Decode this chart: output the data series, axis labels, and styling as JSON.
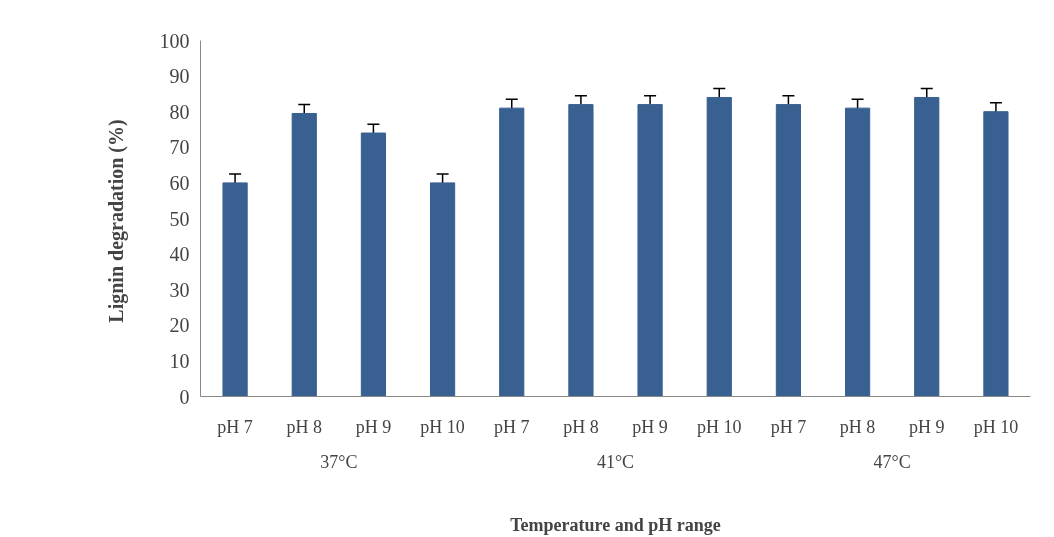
{
  "chart_data": {
    "type": "bar",
    "xlabel": "Temperature and pH range",
    "ylabel": "Lignin degradation  (%)",
    "categories": [
      "pH 7",
      "pH 8",
      "pH 9",
      "pH 10",
      "pH 7",
      "pH 8",
      "pH 9",
      "pH 10",
      "pH 7",
      "pH 8",
      "pH 9",
      "pH 10"
    ],
    "values": [
      60,
      79.5,
      74,
      60,
      81,
      82,
      82,
      84,
      82,
      81,
      84,
      80
    ],
    "errors": [
      2.5,
      2.5,
      2.5,
      2.5,
      2.5,
      2.5,
      2.5,
      2.5,
      2.5,
      2.5,
      2.5,
      2.5
    ],
    "color": "#386090",
    "ylim": [
      0,
      100
    ],
    "yticks": [
      0,
      10,
      20,
      30,
      40,
      50,
      60,
      70,
      80,
      90,
      100
    ],
    "grid": false,
    "annotations": [
      "37°C",
      "41°C",
      "47°C"
    ]
  }
}
